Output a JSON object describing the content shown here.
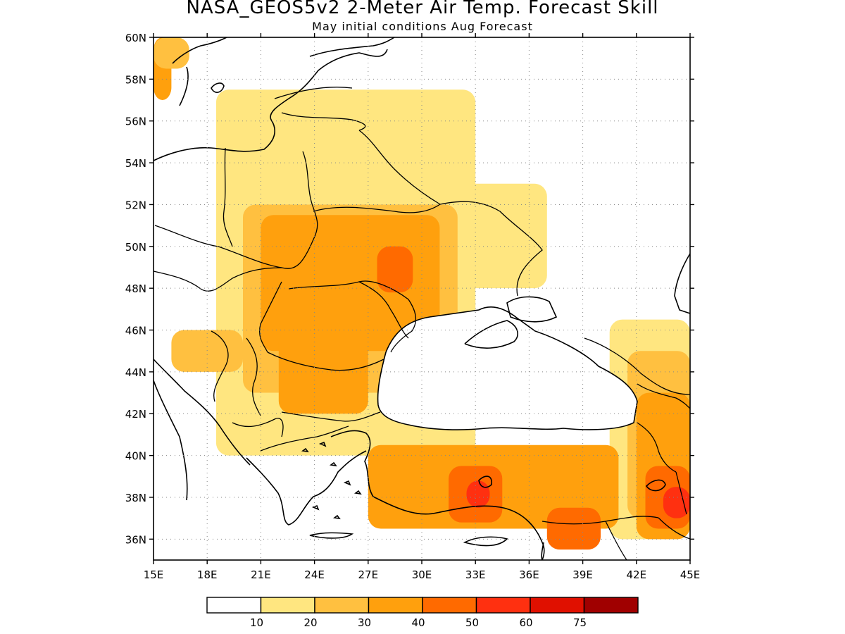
{
  "header": {
    "title": "NASA_GEOS5v2 2-Meter Air Temp. Forecast Skill",
    "subtitle": "May initial conditions  Aug Forecast"
  },
  "map": {
    "lon_range": [
      15,
      45
    ],
    "lat_range": [
      35,
      60
    ],
    "lon_ticks": [
      "15E",
      "18E",
      "21E",
      "24E",
      "27E",
      "30E",
      "33E",
      "36E",
      "39E",
      "42E",
      "45E"
    ],
    "lat_ticks": [
      "36N",
      "38N",
      "40N",
      "42N",
      "44N",
      "46N",
      "48N",
      "50N",
      "52N",
      "54N",
      "56N",
      "58N",
      "60N"
    ],
    "gridlines": "dotted",
    "region": "Eastern Europe, Black Sea and Anatolia",
    "skill_field": [
      {
        "level": 30,
        "lon": [
          15,
          16
        ],
        "lat": [
          57,
          60
        ]
      },
      {
        "level": 20,
        "lon": [
          15,
          17
        ],
        "lat": [
          58.5,
          60
        ]
      },
      {
        "level": 10,
        "lon": [
          18.5,
          33
        ],
        "lat": [
          40,
          57.5
        ]
      },
      {
        "level": 10,
        "lon": [
          30,
          37
        ],
        "lat": [
          48,
          53
        ]
      },
      {
        "level": 10,
        "lon": [
          40.5,
          45
        ],
        "lat": [
          36,
          46.5
        ]
      },
      {
        "level": 20,
        "lon": [
          20,
          32
        ],
        "lat": [
          43,
          52
        ]
      },
      {
        "level": 20,
        "lon": [
          16,
          20
        ],
        "lat": [
          44,
          46
        ]
      },
      {
        "level": 20,
        "lon": [
          41.5,
          45
        ],
        "lat": [
          37,
          45
        ]
      },
      {
        "level": 30,
        "lon": [
          21,
          31
        ],
        "lat": [
          45,
          51.5
        ]
      },
      {
        "level": 30,
        "lon": [
          22,
          27
        ],
        "lat": [
          42,
          46
        ]
      },
      {
        "level": 30,
        "lon": [
          27,
          41
        ],
        "lat": [
          36.5,
          40.5
        ]
      },
      {
        "level": 30,
        "lon": [
          42,
          45
        ],
        "lat": [
          36,
          43
        ]
      },
      {
        "level": 40,
        "lon": [
          27.5,
          29.5
        ],
        "lat": [
          47.8,
          50
        ]
      },
      {
        "level": 40,
        "lon": [
          31.5,
          34.5
        ],
        "lat": [
          36.8,
          39.5
        ]
      },
      {
        "level": 40,
        "lon": [
          37,
          40
        ],
        "lat": [
          35.5,
          37.5
        ]
      },
      {
        "level": 40,
        "lon": [
          42.5,
          45
        ],
        "lat": [
          36.5,
          39.5
        ]
      },
      {
        "level": 50,
        "lon": [
          32.5,
          33.8
        ],
        "lat": [
          37.5,
          38.8
        ]
      },
      {
        "level": 50,
        "lon": [
          43.5,
          45
        ],
        "lat": [
          37,
          38.5
        ]
      }
    ]
  },
  "legend": {
    "labels": [
      "10",
      "20",
      "30",
      "40",
      "50",
      "60",
      "75"
    ],
    "colors": [
      "#ffffff",
      "#ffe680",
      "#ffc040",
      "#ffa00d",
      "#ff6a00",
      "#ff3010",
      "#e01000",
      "#a00000"
    ]
  }
}
